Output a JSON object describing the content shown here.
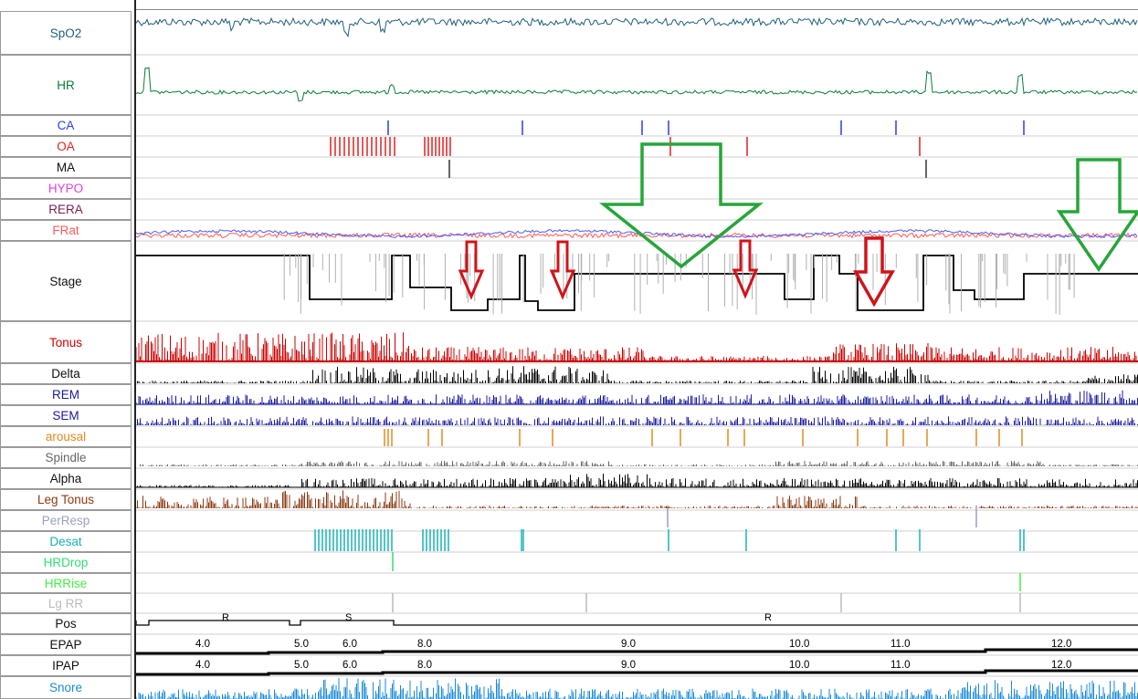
{
  "chart_data": {
    "type": "line",
    "title": "",
    "rows": [
      {
        "name": "SpO2",
        "color": "#1f5f7f"
      },
      {
        "name": "HR",
        "color": "#0a7d3a"
      },
      {
        "name": "CA",
        "color": "#2a3ee0"
      },
      {
        "name": "OA",
        "color": "#e02020"
      },
      {
        "name": "MA",
        "color": "#333333"
      },
      {
        "name": "HYPO",
        "color": "#dd44dd"
      },
      {
        "name": "RERA",
        "color": "#7a1f55"
      },
      {
        "name": "FRat",
        "color": "#ff5a5a"
      },
      {
        "name": "Stage",
        "color": "#000000"
      },
      {
        "name": "Tonus",
        "color": "#cc0000"
      },
      {
        "name": "Delta",
        "color": "#000000"
      },
      {
        "name": "REM",
        "color": "#1a1aa0"
      },
      {
        "name": "SEM",
        "color": "#1a1aa0"
      },
      {
        "name": "arousal",
        "color": "#e08a20"
      },
      {
        "name": "Spindle",
        "color": "#666666"
      },
      {
        "name": "Alpha",
        "color": "#000000"
      },
      {
        "name": "Leg Tonus",
        "color": "#8b3a0f"
      },
      {
        "name": "PerResp",
        "color": "#9aa0c0"
      },
      {
        "name": "Desat",
        "color": "#1ab3b3"
      },
      {
        "name": "HRDrop",
        "color": "#33dd77"
      },
      {
        "name": "HRRise",
        "color": "#44ee44"
      },
      {
        "name": "Lg RR",
        "color": "#bbbbbb"
      },
      {
        "name": "Pos",
        "color": "#000000"
      },
      {
        "name": "EPAP",
        "color": "#000000"
      },
      {
        "name": "IPAP",
        "color": "#000000"
      },
      {
        "name": "Snore",
        "color": "#1a8ad4"
      }
    ],
    "pos_labels": [
      "R",
      "S",
      "R"
    ],
    "pressure_steps": {
      "values": [
        "4.0",
        "5.0",
        "6.0",
        "8.0",
        "9.0",
        "10.0",
        "11.0",
        "12.0"
      ]
    },
    "annotations": {
      "red_down_arrows": 4,
      "green_down_arrows": 2
    }
  }
}
